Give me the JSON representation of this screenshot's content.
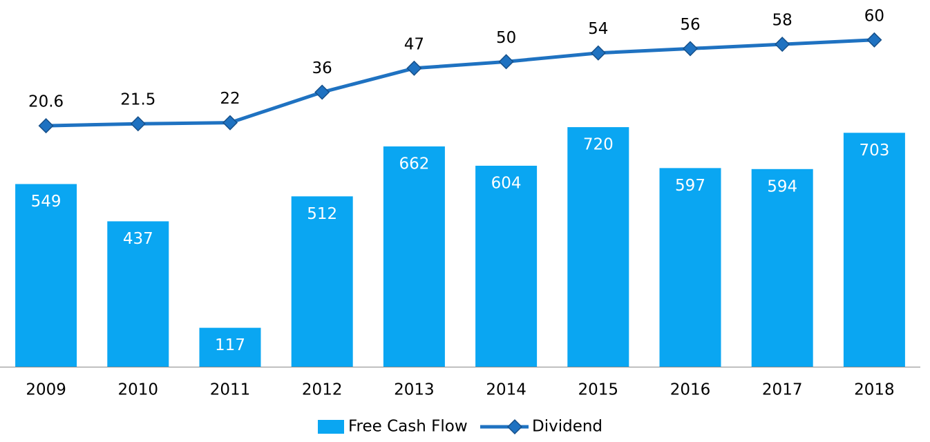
{
  "chart_data": {
    "type": "bar+line",
    "categories": [
      "2009",
      "2010",
      "2011",
      "2012",
      "2013",
      "2014",
      "2015",
      "2016",
      "2017",
      "2018"
    ],
    "series": [
      {
        "name": "Free Cash Flow",
        "type": "bar",
        "color": "#0aa6f2",
        "values": [
          549,
          437,
          117,
          512,
          662,
          604,
          720,
          597,
          594,
          703
        ]
      },
      {
        "name": "Dividend",
        "type": "line",
        "axis": "y2",
        "color": "#1f72c1",
        "values": [
          20.6,
          21.5,
          22,
          36,
          47,
          50,
          54,
          56,
          58,
          60
        ]
      }
    ],
    "ylim": [
      0,
      1100
    ],
    "y2lim": [
      -90,
      78
    ],
    "legend": "bottom"
  }
}
